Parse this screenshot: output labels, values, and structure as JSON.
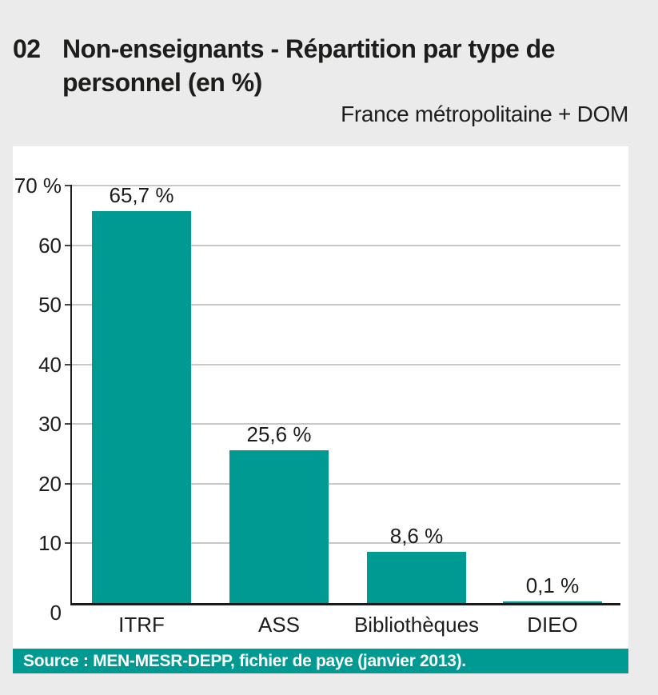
{
  "figure": {
    "number": "02",
    "title_line1": "Non-enseignants - Répartition par type de",
    "title_line2": "personnel (en %)",
    "scope": "France métropolitaine + DOM",
    "source": "Source : MEN-MESR-DEPP, fichier de paye (janvier 2013)."
  },
  "colors": {
    "bar": "#009a93",
    "source_bar": "#009a93",
    "page_background": "#ebebeb",
    "panel_background": "#ffffff",
    "gridline": "#c8c8c8",
    "axis": "#1a1a1a",
    "text": "#1d1d1b",
    "source_text": "#ffffff"
  },
  "chart_data": {
    "type": "bar",
    "title": "Non-enseignants - Répartition par type de personnel (en %)",
    "subtitle": "France métropolitaine + DOM",
    "categories": [
      "ITRF",
      "ASS",
      "Bibliothèques",
      "DIEO"
    ],
    "values": [
      65.7,
      25.6,
      8.6,
      0.1
    ],
    "value_labels": [
      "65,7 %",
      "25,6 %",
      "8,6 %",
      "0,1 %"
    ],
    "xlabel": "",
    "ylabel": "%",
    "ylim": [
      0,
      70
    ],
    "y_ticks": [
      0,
      10,
      20,
      30,
      40,
      50,
      60,
      70
    ],
    "y_tick_labels": [
      "0",
      "10",
      "20",
      "30",
      "40",
      "50",
      "60",
      "70 %"
    ],
    "grid": true,
    "legend": false,
    "source": "Source : MEN-MESR-DEPP, fichier de paye (janvier 2013)."
  }
}
